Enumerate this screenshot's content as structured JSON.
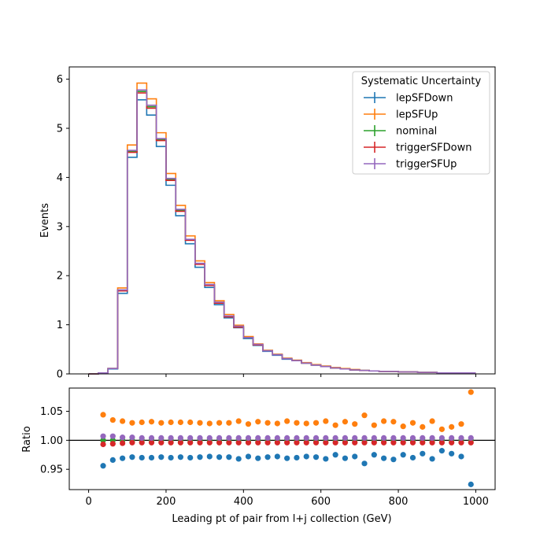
{
  "chart_data": [
    {
      "type": "line",
      "plot": "main",
      "drawstyle": "steps",
      "xlabel": "",
      "ylabel": "Events",
      "xlim": [
        -50,
        1050
      ],
      "ylim": [
        0,
        6.25
      ],
      "yticks": [
        0,
        1,
        2,
        3,
        4,
        5,
        6
      ],
      "xticks": [
        0,
        200,
        400,
        600,
        800,
        1000
      ],
      "show_xtick_labels": false,
      "bin_edges": [
        0,
        25,
        50,
        75,
        100,
        125,
        150,
        175,
        200,
        225,
        250,
        275,
        300,
        325,
        350,
        375,
        400,
        425,
        450,
        475,
        500,
        525,
        550,
        575,
        600,
        625,
        650,
        675,
        700,
        725,
        750,
        775,
        800,
        825,
        850,
        875,
        900,
        925,
        950,
        975,
        1000
      ],
      "legend_title": "Systematic Uncertainty",
      "legend_position": "upper-right",
      "series": [
        {
          "name": "lepSFDown",
          "color": "#1f77b4",
          "values": [
            0.0,
            0.02,
            0.1,
            1.64,
            4.41,
            5.58,
            5.27,
            4.63,
            3.84,
            3.22,
            2.65,
            2.17,
            1.76,
            1.41,
            1.14,
            0.94,
            0.72,
            0.58,
            0.46,
            0.38,
            0.3,
            0.27,
            0.22,
            0.18,
            0.15,
            0.12,
            0.1,
            0.08,
            0.07,
            0.06,
            0.05,
            0.05,
            0.04,
            0.04,
            0.03,
            0.03,
            0.02,
            0.02,
            0.02,
            0.02
          ]
        },
        {
          "name": "lepSFUp",
          "color": "#ff7f0e",
          "values": [
            0.0,
            0.02,
            0.11,
            1.75,
            4.66,
            5.92,
            5.6,
            4.91,
            4.08,
            3.43,
            2.81,
            2.3,
            1.86,
            1.49,
            1.21,
            0.99,
            0.76,
            0.61,
            0.48,
            0.4,
            0.32,
            0.28,
            0.23,
            0.19,
            0.16,
            0.13,
            0.11,
            0.09,
            0.07,
            0.06,
            0.05,
            0.05,
            0.04,
            0.04,
            0.03,
            0.03,
            0.02,
            0.02,
            0.02,
            0.02
          ]
        },
        {
          "name": "nominal",
          "color": "#2ca02c",
          "values": [
            0.0,
            0.02,
            0.11,
            1.7,
            4.53,
            5.75,
            5.44,
            4.77,
            3.96,
            3.33,
            2.73,
            2.24,
            1.81,
            1.45,
            1.17,
            0.96,
            0.74,
            0.59,
            0.47,
            0.39,
            0.31,
            0.27,
            0.22,
            0.18,
            0.15,
            0.12,
            0.1,
            0.08,
            0.07,
            0.06,
            0.05,
            0.05,
            0.04,
            0.04,
            0.03,
            0.03,
            0.02,
            0.02,
            0.02,
            0.02
          ]
        },
        {
          "name": "triggerSFDown",
          "color": "#d62728",
          "values": [
            0.0,
            0.02,
            0.11,
            1.69,
            4.51,
            5.72,
            5.41,
            4.75,
            3.94,
            3.31,
            2.72,
            2.23,
            1.8,
            1.44,
            1.16,
            0.95,
            0.74,
            0.59,
            0.47,
            0.39,
            0.31,
            0.27,
            0.22,
            0.18,
            0.15,
            0.12,
            0.1,
            0.08,
            0.07,
            0.06,
            0.05,
            0.05,
            0.04,
            0.04,
            0.03,
            0.03,
            0.02,
            0.02,
            0.02,
            0.02
          ]
        },
        {
          "name": "triggerSFUp",
          "color": "#9467bd",
          "values": [
            0.0,
            0.02,
            0.11,
            1.71,
            4.55,
            5.78,
            5.47,
            4.79,
            3.98,
            3.35,
            2.74,
            2.25,
            1.82,
            1.46,
            1.18,
            0.97,
            0.74,
            0.6,
            0.47,
            0.39,
            0.31,
            0.27,
            0.22,
            0.18,
            0.15,
            0.12,
            0.1,
            0.08,
            0.07,
            0.06,
            0.05,
            0.05,
            0.04,
            0.04,
            0.03,
            0.03,
            0.02,
            0.02,
            0.02,
            0.02
          ]
        }
      ]
    },
    {
      "type": "scatter",
      "plot": "ratio",
      "xlabel": "Leading pt of pair from l+j collection (GeV)",
      "ylabel": "Ratio",
      "xlim": [
        -50,
        1050
      ],
      "ylim": [
        0.915,
        1.09
      ],
      "yticks": [
        0.95,
        1.0,
        1.05
      ],
      "ytick_labels": [
        "0.95",
        "1.00",
        "1.05"
      ],
      "xticks": [
        0,
        200,
        400,
        600,
        800,
        1000
      ],
      "xtick_labels": [
        "0",
        "200",
        "400",
        "600",
        "800",
        "1000"
      ],
      "reference_line": 1.0,
      "x": [
        37.5,
        62.5,
        87.5,
        112.5,
        137.5,
        162.5,
        187.5,
        212.5,
        237.5,
        262.5,
        287.5,
        312.5,
        337.5,
        362.5,
        387.5,
        412.5,
        437.5,
        462.5,
        487.5,
        512.5,
        537.5,
        562.5,
        587.5,
        612.5,
        637.5,
        662.5,
        687.5,
        712.5,
        737.5,
        762.5,
        787.5,
        812.5,
        837.5,
        862.5,
        887.5,
        912.5,
        937.5,
        962.5,
        987.5
      ],
      "series": [
        {
          "name": "lepSFDown",
          "color": "#1f77b4",
          "values": [
            0.956,
            0.966,
            0.969,
            0.971,
            0.97,
            0.97,
            0.971,
            0.97,
            0.971,
            0.97,
            0.971,
            0.972,
            0.971,
            0.971,
            0.968,
            0.972,
            0.969,
            0.971,
            0.972,
            0.969,
            0.97,
            0.972,
            0.971,
            0.968,
            0.975,
            0.969,
            0.972,
            0.96,
            0.975,
            0.969,
            0.967,
            0.975,
            0.97,
            0.977,
            0.968,
            0.982,
            0.977,
            0.972,
            0.924
          ]
        },
        {
          "name": "lepSFUp",
          "color": "#ff7f0e",
          "values": [
            1.044,
            1.035,
            1.033,
            1.03,
            1.031,
            1.032,
            1.03,
            1.031,
            1.031,
            1.031,
            1.03,
            1.029,
            1.03,
            1.03,
            1.033,
            1.028,
            1.032,
            1.03,
            1.029,
            1.033,
            1.03,
            1.029,
            1.03,
            1.033,
            1.026,
            1.032,
            1.028,
            1.043,
            1.026,
            1.033,
            1.032,
            1.024,
            1.03,
            1.023,
            1.033,
            1.019,
            1.023,
            1.028,
            1.083
          ]
        },
        {
          "name": "nominal",
          "color": "#2ca02c",
          "values": [
            1.0,
            1.0,
            1.0,
            1.0,
            1.0,
            1.0,
            1.0,
            1.0,
            1.0,
            1.0,
            1.0,
            1.0,
            1.0,
            1.0,
            1.0,
            1.0,
            1.0,
            1.0,
            1.0,
            1.0,
            1.0,
            1.0,
            1.0,
            1.0,
            1.0,
            1.0,
            1.0,
            1.0,
            1.0,
            1.0,
            1.0,
            1.0,
            1.0,
            1.0,
            1.0,
            1.0,
            1.0,
            1.0,
            1.0
          ]
        },
        {
          "name": "triggerSFDown",
          "color": "#d62728",
          "values": [
            0.993,
            0.994,
            0.995,
            0.996,
            0.996,
            0.996,
            0.996,
            0.996,
            0.996,
            0.996,
            0.996,
            0.996,
            0.996,
            0.996,
            0.996,
            0.996,
            0.996,
            0.996,
            0.996,
            0.996,
            0.996,
            0.996,
            0.996,
            0.996,
            0.996,
            0.996,
            0.996,
            0.996,
            0.996,
            0.996,
            0.996,
            0.996,
            0.996,
            0.996,
            0.996,
            0.996,
            0.996,
            0.996,
            0.996
          ]
        },
        {
          "name": "triggerSFUp",
          "color": "#9467bd",
          "values": [
            1.007,
            1.007,
            1.005,
            1.005,
            1.004,
            1.004,
            1.004,
            1.004,
            1.004,
            1.004,
            1.004,
            1.004,
            1.004,
            1.004,
            1.004,
            1.004,
            1.004,
            1.004,
            1.004,
            1.004,
            1.004,
            1.004,
            1.004,
            1.004,
            1.004,
            1.004,
            1.004,
            1.004,
            1.004,
            1.004,
            1.004,
            1.004,
            1.004,
            1.004,
            1.004,
            1.004,
            1.004,
            1.004,
            1.004
          ]
        }
      ]
    }
  ]
}
